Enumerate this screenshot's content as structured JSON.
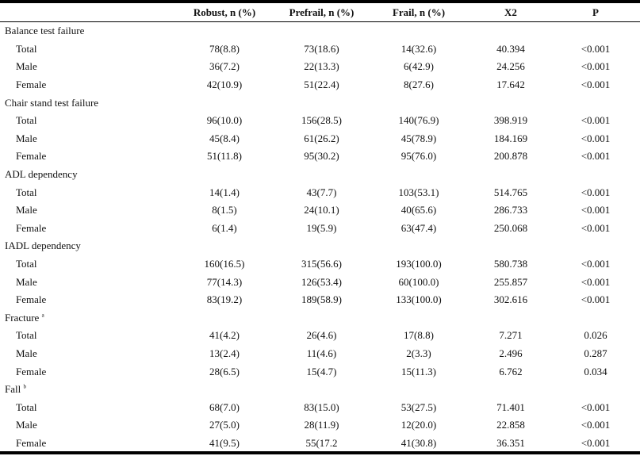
{
  "header": {
    "col_label": "",
    "robust": "Robust, n (%)",
    "prefrail": "Prefrail, n (%)",
    "frail": "Frail, n (%)",
    "x2": "X2",
    "p": "P"
  },
  "groups": [
    {
      "title": "Balance test failure",
      "sup": "",
      "rows": [
        {
          "label": "Total",
          "robust": "78(8.8)",
          "prefrail": "73(18.6)",
          "frail": "14(32.6)",
          "x2": "40.394",
          "p": "<0.001"
        },
        {
          "label": "Male",
          "robust": "36(7.2)",
          "prefrail": "22(13.3)",
          "frail": "6(42.9)",
          "x2": "24.256",
          "p": "<0.001"
        },
        {
          "label": "Female",
          "robust": "42(10.9)",
          "prefrail": "51(22.4)",
          "frail": "8(27.6)",
          "x2": "17.642",
          "p": "<0.001"
        }
      ]
    },
    {
      "title": "Chair stand test failure",
      "sup": "",
      "rows": [
        {
          "label": "Total",
          "robust": "96(10.0)",
          "prefrail": "156(28.5)",
          "frail": "140(76.9)",
          "x2": "398.919",
          "p": "<0.001"
        },
        {
          "label": "Male",
          "robust": "45(8.4)",
          "prefrail": "61(26.2)",
          "frail": "45(78.9)",
          "x2": "184.169",
          "p": "<0.001"
        },
        {
          "label": "Female",
          "robust": "51(11.8)",
          "prefrail": "95(30.2)",
          "frail": "95(76.0)",
          "x2": "200.878",
          "p": "<0.001"
        }
      ]
    },
    {
      "title": "ADL dependency",
      "sup": "",
      "rows": [
        {
          "label": "Total",
          "robust": "14(1.4)",
          "prefrail": "43(7.7)",
          "frail": "103(53.1)",
          "x2": "514.765",
          "p": "<0.001"
        },
        {
          "label": "Male",
          "robust": "8(1.5)",
          "prefrail": "24(10.1)",
          "frail": "40(65.6)",
          "x2": "286.733",
          "p": "<0.001"
        },
        {
          "label": "Female",
          "robust": "6(1.4)",
          "prefrail": "19(5.9)",
          "frail": "63(47.4)",
          "x2": "250.068",
          "p": "<0.001"
        }
      ]
    },
    {
      "title": "IADL dependency",
      "sup": "",
      "rows": [
        {
          "label": "Total",
          "robust": "160(16.5)",
          "prefrail": "315(56.6)",
          "frail": "193(100.0)",
          "x2": "580.738",
          "p": "<0.001"
        },
        {
          "label": "Male",
          "robust": "77(14.3)",
          "prefrail": "126(53.4)",
          "frail": "60(100.0)",
          "x2": "255.857",
          "p": "<0.001"
        },
        {
          "label": "Female",
          "robust": "83(19.2)",
          "prefrail": "189(58.9)",
          "frail": "133(100.0)",
          "x2": "302.616",
          "p": "<0.001"
        }
      ]
    },
    {
      "title": "Fracture",
      "sup": "a",
      "rows": [
        {
          "label": "Total",
          "robust": "41(4.2)",
          "prefrail": "26(4.6)",
          "frail": "17(8.8)",
          "x2": "7.271",
          "p": "0.026"
        },
        {
          "label": "Male",
          "robust": "13(2.4)",
          "prefrail": "11(4.6)",
          "frail": "2(3.3)",
          "x2": "2.496",
          "p": "0.287"
        },
        {
          "label": "Female",
          "robust": "28(6.5)",
          "prefrail": "15(4.7)",
          "frail": "15(11.3)",
          "x2": "6.762",
          "p": "0.034"
        }
      ]
    },
    {
      "title": "Fall",
      "sup": "b",
      "rows": [
        {
          "label": "Total",
          "robust": "68(7.0)",
          "prefrail": "83(15.0)",
          "frail": "53(27.5)",
          "x2": "71.401",
          "p": "<0.001"
        },
        {
          "label": "Male",
          "robust": "27(5.0)",
          "prefrail": "28(11.9)",
          "frail": "12(20.0)",
          "x2": "22.858",
          "p": "<0.001"
        },
        {
          "label": "Female",
          "robust": "41(9.5)",
          "prefrail": "55(17.2",
          "frail": "41(30.8)",
          "x2": "36.351",
          "p": "<0.001"
        }
      ]
    }
  ]
}
